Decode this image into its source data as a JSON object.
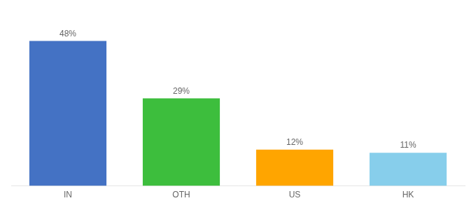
{
  "chart_data": {
    "type": "bar",
    "categories": [
      "IN",
      "OTH",
      "US",
      "HK"
    ],
    "values": [
      48,
      29,
      12,
      11
    ],
    "value_labels": [
      "48%",
      "29%",
      "12%",
      "11%"
    ],
    "colors": [
      "#4472C4",
      "#3DBE3D",
      "#FFA500",
      "#87CEEB"
    ],
    "ylim": [
      0,
      56
    ],
    "grid": false,
    "data_labels": true,
    "tick_labels": "x"
  }
}
